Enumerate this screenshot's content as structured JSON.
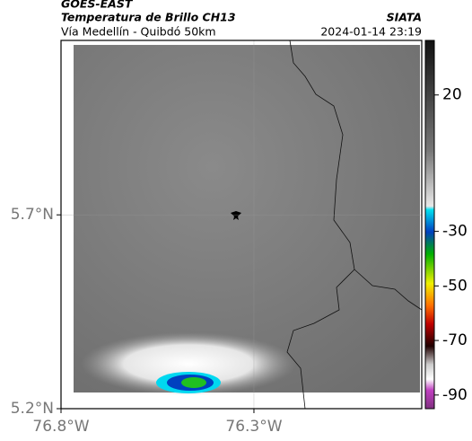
{
  "header": {
    "source": "GOES-EAST",
    "title": "Temperatura de Brillo CH13",
    "org": "SIATA",
    "subtitle": "Vía Medellín - Quibdó 50km",
    "datetime": "2024-01-14 23:19"
  },
  "map": {
    "xlim": [
      -76.8,
      -75.865
    ],
    "ylim": [
      5.2,
      6.15
    ],
    "xticks": [
      {
        "value": -76.8,
        "label": "76.8°W"
      },
      {
        "value": -76.3,
        "label": "76.3°W"
      }
    ],
    "yticks": [
      {
        "value": 5.7,
        "label": "5.7°N"
      },
      {
        "value": 5.2,
        "label": "5.2°N"
      }
    ],
    "colorbar": {
      "lim": [
        40,
        -95
      ],
      "ticks": [
        20,
        -30,
        -50,
        -70,
        -90
      ]
    }
  }
}
